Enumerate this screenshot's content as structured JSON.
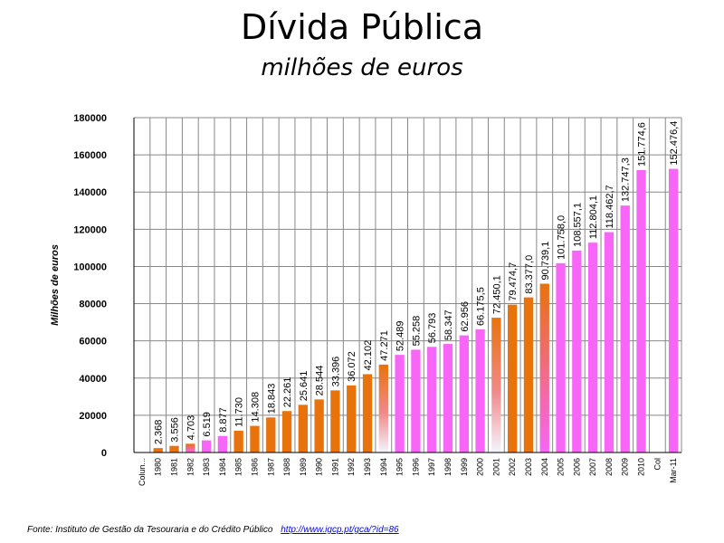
{
  "chart_data": {
    "type": "bar",
    "title": "Dívida Pública",
    "subtitle": "milhões de euros",
    "ylabel": "Milhões de euros",
    "xlabel": "",
    "ylim": [
      0,
      180000
    ],
    "y_ticks": [
      "0",
      "20000",
      "40000",
      "60000",
      "80000",
      "100000",
      "120000",
      "140000",
      "160000",
      "180000"
    ],
    "grid": true,
    "categories": [
      "Colun...",
      "1980",
      "1981",
      "1982",
      "1983",
      "1984",
      "1985",
      "1986",
      "1987",
      "1988",
      "1989",
      "1990",
      "1991",
      "1992",
      "1993",
      "1994",
      "1995",
      "1996",
      "1997",
      "1998",
      "1999",
      "2000",
      "2001",
      "2002",
      "2003",
      "2004",
      "2005",
      "2006",
      "2007",
      "2008",
      "2009",
      "2010",
      "Col",
      "Mar-11"
    ],
    "values": [
      null,
      2368,
      3556,
      4703,
      6519,
      8877,
      11730,
      14308,
      18843,
      22261,
      25641,
      28544,
      33396,
      36072,
      42102,
      47271,
      52489,
      55258,
      56793,
      58347,
      62956,
      66175.5,
      72450.1,
      79474.7,
      83377.0,
      90739.1,
      101758.0,
      108557.1,
      112804.1,
      118462.7,
      132747.3,
      151774.6,
      null,
      152476.4
    ],
    "labels": [
      "",
      "2.368",
      "3.556",
      "4.703",
      "6.519",
      "8.877",
      "11.730",
      "14.308",
      "18.843",
      "22.261",
      "25.641",
      "28.544",
      "33.396",
      "36.072",
      "42.102",
      "47.271",
      "52.489",
      "55.258",
      "56.793",
      "58.347",
      "62.956",
      "66.175,5",
      "72.450,1",
      "79.474,7",
      "83.377,0",
      "90.739,1",
      "101.758,0",
      "108.557,1",
      "112.804,1",
      "118.462,7",
      "132.747,3",
      "151.774,6",
      "",
      "152.476,4"
    ],
    "bar_colors": [
      "",
      "#e8720c",
      "#e8720c",
      "gradient-orange-magenta",
      "#f766f7",
      "#f766f7",
      "#e8720c",
      "#e8720c",
      "#e8720c",
      "#e8720c",
      "#e8720c",
      "#e8720c",
      "#e8720c",
      "#e8720c",
      "#e8720c",
      "gradient-orange-white",
      "#f766f7",
      "#f766f7",
      "#f766f7",
      "#f766f7",
      "#f766f7",
      "#f766f7",
      "gradient-orange-white",
      "#e8720c",
      "#e8720c",
      "gradient-orange-magenta",
      "#f766f7",
      "#f766f7",
      "#f766f7",
      "#f766f7",
      "#f766f7",
      "#f766f7",
      "",
      "#f766f7"
    ]
  },
  "source": {
    "text": "Fonte: Instituto de Gestão da Tesouraria e do Crédito Público",
    "url": "http://www.igcp.pt/gca/?id=86"
  }
}
